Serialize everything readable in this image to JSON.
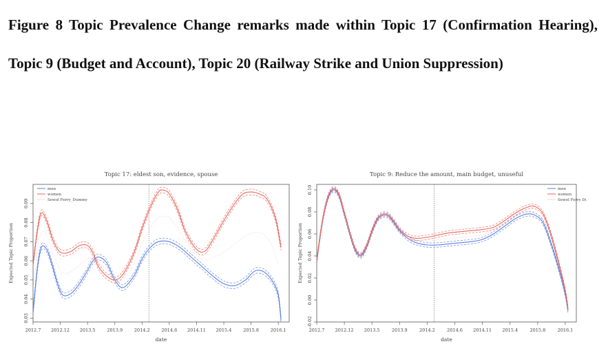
{
  "figure": {
    "caption": "Figure 8 Topic Prevalence Change remarks made within Topic 17 (Confirmation Hearing), Topic 9 (Budget and Account), Topic 20 (Railway Strike and Union Suppression)"
  },
  "colors": {
    "men": "#5b7fe0",
    "women": "#e8655a",
    "dummy": "#ee9f99",
    "axis": "#555555"
  },
  "chart_data": [
    {
      "type": "line",
      "title": "Topic 17: eldest son, evidence, spouse",
      "xlabel": "date",
      "ylabel": "Expected Topic Proportion",
      "x_ticks": [
        "2012.7",
        "2012.12",
        "2013.5",
        "2013.9",
        "2014.2",
        "2014.6",
        "2014.11",
        "2015.4",
        "2015.8",
        "2016.1"
      ],
      "xlim": [
        0,
        9.4
      ],
      "ylim": [
        0.028,
        0.1
      ],
      "y_ticks": [
        0.03,
        0.04,
        0.05,
        0.06,
        0.07,
        0.08,
        0.09
      ],
      "vline_x": 4.25,
      "legend": [
        "men",
        "women",
        "Sewol Ferry_Dummy"
      ],
      "legend_position": "top-left",
      "band": 0.0015,
      "series": [
        {
          "name": "men",
          "x": [
            0,
            0.15,
            0.3,
            0.5,
            0.7,
            0.9,
            1.1,
            1.4,
            1.7,
            2.0,
            2.2,
            2.4,
            2.7,
            3.0,
            3.3,
            3.7,
            4.0,
            4.3,
            4.6,
            5.0,
            5.4,
            5.8,
            6.2,
            6.6,
            7.0,
            7.4,
            7.8,
            8.0,
            8.2,
            8.5,
            8.8,
            9.0,
            9.1
          ],
          "y": [
            0.033,
            0.055,
            0.067,
            0.066,
            0.058,
            0.048,
            0.042,
            0.043,
            0.048,
            0.055,
            0.06,
            0.062,
            0.059,
            0.05,
            0.046,
            0.052,
            0.061,
            0.067,
            0.07,
            0.07,
            0.067,
            0.062,
            0.057,
            0.052,
            0.048,
            0.047,
            0.05,
            0.053,
            0.055,
            0.054,
            0.049,
            0.042,
            0.029
          ]
        },
        {
          "name": "women",
          "x": [
            0,
            0.15,
            0.3,
            0.5,
            0.7,
            0.9,
            1.1,
            1.4,
            1.7,
            2.0,
            2.2,
            2.4,
            2.7,
            3.0,
            3.3,
            3.7,
            4.0,
            4.3,
            4.6,
            4.8,
            5.0,
            5.3,
            5.6,
            6.0,
            6.3,
            6.6,
            7.0,
            7.4,
            7.7,
            8.0,
            8.3,
            8.6,
            8.9,
            9.1
          ],
          "y": [
            0.058,
            0.075,
            0.085,
            0.081,
            0.072,
            0.066,
            0.064,
            0.065,
            0.068,
            0.068,
            0.064,
            0.057,
            0.052,
            0.05,
            0.053,
            0.064,
            0.077,
            0.088,
            0.096,
            0.097,
            0.095,
            0.087,
            0.075,
            0.066,
            0.065,
            0.071,
            0.081,
            0.09,
            0.095,
            0.096,
            0.095,
            0.092,
            0.082,
            0.067
          ]
        }
      ]
    },
    {
      "type": "line",
      "title": "Topic 9: Reduce the amount, main budget, unuseful",
      "xlabel": "date",
      "ylabel": "Expected Topic Proportion",
      "x_ticks": [
        "2012.7",
        "2012.12",
        "2013.5",
        "2013.9",
        "2014.2",
        "2014.6",
        "2014.11",
        "2015.4",
        "2015.8",
        "2016.1"
      ],
      "xlim": [
        0,
        9.4
      ],
      "ylim": [
        -0.02,
        0.105
      ],
      "y_ticks": [
        -0.02,
        0.0,
        0.02,
        0.04,
        0.06,
        0.08,
        0.1
      ],
      "vline_x": 4.25,
      "legend": [
        "men",
        "women",
        "Sewol Ferry Dummy"
      ],
      "legend_position": "top-right",
      "band": 0.002,
      "series": [
        {
          "name": "men",
          "x": [
            0,
            0.2,
            0.4,
            0.6,
            0.8,
            1.0,
            1.2,
            1.4,
            1.6,
            1.8,
            2.0,
            2.2,
            2.4,
            2.6,
            2.8,
            3.0,
            3.3,
            3.6,
            4.0,
            4.4,
            4.8,
            5.2,
            5.6,
            6.0,
            6.4,
            6.8,
            7.2,
            7.6,
            7.9,
            8.2,
            8.5,
            8.8,
            9.0,
            9.1
          ],
          "y": [
            0.035,
            0.07,
            0.092,
            0.1,
            0.095,
            0.078,
            0.06,
            0.045,
            0.04,
            0.048,
            0.062,
            0.073,
            0.077,
            0.076,
            0.07,
            0.063,
            0.056,
            0.052,
            0.05,
            0.05,
            0.051,
            0.052,
            0.053,
            0.055,
            0.06,
            0.067,
            0.074,
            0.078,
            0.077,
            0.07,
            0.05,
            0.025,
            0.005,
            -0.01
          ]
        },
        {
          "name": "women",
          "x": [
            0,
            0.2,
            0.4,
            0.6,
            0.8,
            1.0,
            1.2,
            1.4,
            1.6,
            1.8,
            2.0,
            2.2,
            2.4,
            2.6,
            2.8,
            3.0,
            3.3,
            3.6,
            4.0,
            4.4,
            4.8,
            5.2,
            5.6,
            6.0,
            6.4,
            6.8,
            7.2,
            7.6,
            7.9,
            8.2,
            8.5,
            8.8,
            9.0,
            9.1
          ],
          "y": [
            0.036,
            0.071,
            0.093,
            0.101,
            0.096,
            0.079,
            0.061,
            0.046,
            0.041,
            0.049,
            0.063,
            0.074,
            0.078,
            0.077,
            0.071,
            0.064,
            0.058,
            0.056,
            0.057,
            0.059,
            0.061,
            0.062,
            0.063,
            0.064,
            0.066,
            0.072,
            0.079,
            0.084,
            0.085,
            0.078,
            0.058,
            0.03,
            0.008,
            -0.008
          ]
        }
      ]
    }
  ]
}
